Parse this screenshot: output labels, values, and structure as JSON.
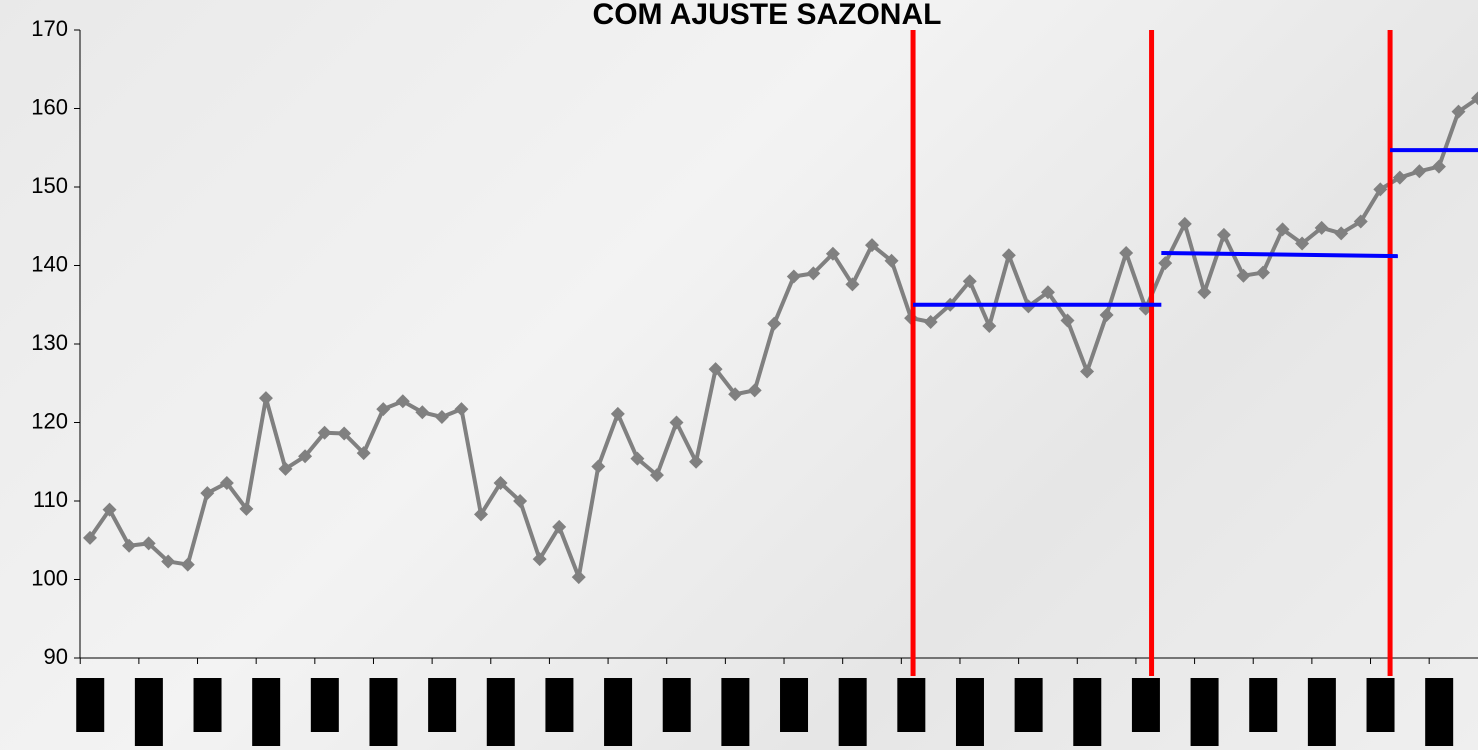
{
  "chart_data": {
    "type": "line",
    "title": "COM AJUSTE SAZONAL",
    "categories": [
      null,
      null,
      null,
      null,
      null,
      null,
      null,
      null,
      null,
      null,
      null,
      null,
      null,
      null,
      null,
      null,
      null,
      null,
      null,
      null,
      null,
      null,
      null,
      null,
      null,
      null,
      null,
      null,
      null,
      null,
      null,
      null,
      null,
      null,
      null,
      null,
      null,
      null,
      null,
      null,
      null,
      null,
      null,
      null,
      null,
      null,
      null,
      null,
      null,
      null,
      null,
      null,
      null,
      null,
      null,
      null,
      null,
      null,
      null,
      null,
      null,
      null,
      null,
      null,
      null,
      null,
      null,
      null,
      null,
      null,
      null,
      null
    ],
    "series": [
      {
        "color": "#808080",
        "values": [
          105.3,
          108.9,
          104.3,
          104.6,
          102.3,
          101.9,
          111,
          112.3,
          109,
          123.1,
          114.1,
          115.7,
          118.7,
          118.6,
          116.1,
          121.7,
          122.7,
          121.3,
          120.7,
          121.7,
          108.3,
          112.3,
          110,
          102.6,
          106.7,
          100.3,
          114.4,
          121.1,
          115.4,
          113.3,
          120,
          115,
          126.8,
          123.6,
          124.1,
          132.6,
          138.6,
          139,
          141.5,
          137.6,
          142.6,
          140.6,
          133.3,
          132.8,
          135,
          138,
          132.3,
          141.3,
          134.8,
          136.6,
          133,
          126.5,
          133.7,
          141.6,
          134.5,
          140.3,
          145.3,
          136.6,
          143.9,
          138.7,
          139.1,
          144.6,
          142.8,
          144.8,
          144.1,
          145.6,
          149.7,
          151.2,
          152,
          152.6,
          159.6,
          161.3
        ]
      }
    ],
    "ylim": [
      90,
      170
    ],
    "yticks": [
      90,
      100,
      110,
      120,
      130,
      140,
      150,
      160,
      170
    ],
    "vlines": [
      {
        "x": 42.1,
        "color": "#ff0000"
      },
      {
        "x": 54.3,
        "color": "#ff0000"
      },
      {
        "x": 66.5,
        "color": "#ff0000"
      }
    ],
    "hlines": [
      {
        "x": [
          42.1,
          54.8
        ],
        "y": [
          135,
          135
        ],
        "color": "#0000ff"
      },
      {
        "x": [
          54.8,
          66.9
        ],
        "y": [
          141.6,
          141.2
        ],
        "color": "#0000ff"
      },
      {
        "x": [
          66.5,
          71
        ],
        "y": [
          154.7,
          154.7
        ],
        "color": "#0000ff"
      }
    ]
  }
}
